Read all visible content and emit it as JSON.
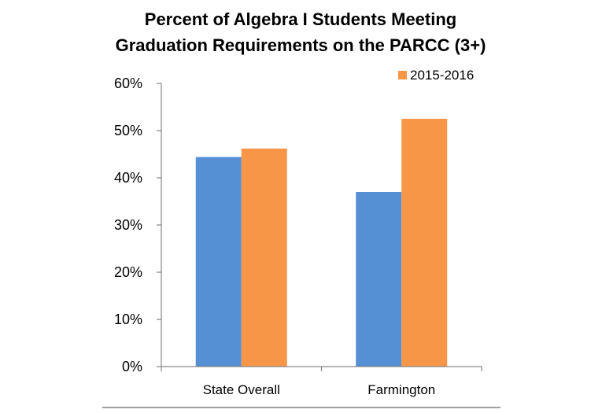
{
  "chart_data": {
    "type": "bar",
    "title_lines": [
      "Percent of Algebra I Students Meeting",
      "Graduation Requirements on the PARCC (3+)"
    ],
    "categories": [
      "State Overall",
      "Farmington"
    ],
    "series": [
      {
        "values": [
          44.4,
          37.0
        ],
        "color": "#5590D5"
      },
      {
        "name": "2015-2016",
        "values": [
          46.2,
          52.5
        ],
        "color": "#F79646"
      }
    ],
    "ylim": [
      0,
      60
    ],
    "yticks": [
      0,
      10,
      20,
      30,
      40,
      50,
      60
    ],
    "ytick_labels": [
      "0%",
      "10%",
      "20%",
      "30%",
      "40%",
      "50%",
      "60%"
    ],
    "legend": {
      "labels": [
        "2015-2016"
      ],
      "placement": "top-right"
    },
    "grid": false
  }
}
